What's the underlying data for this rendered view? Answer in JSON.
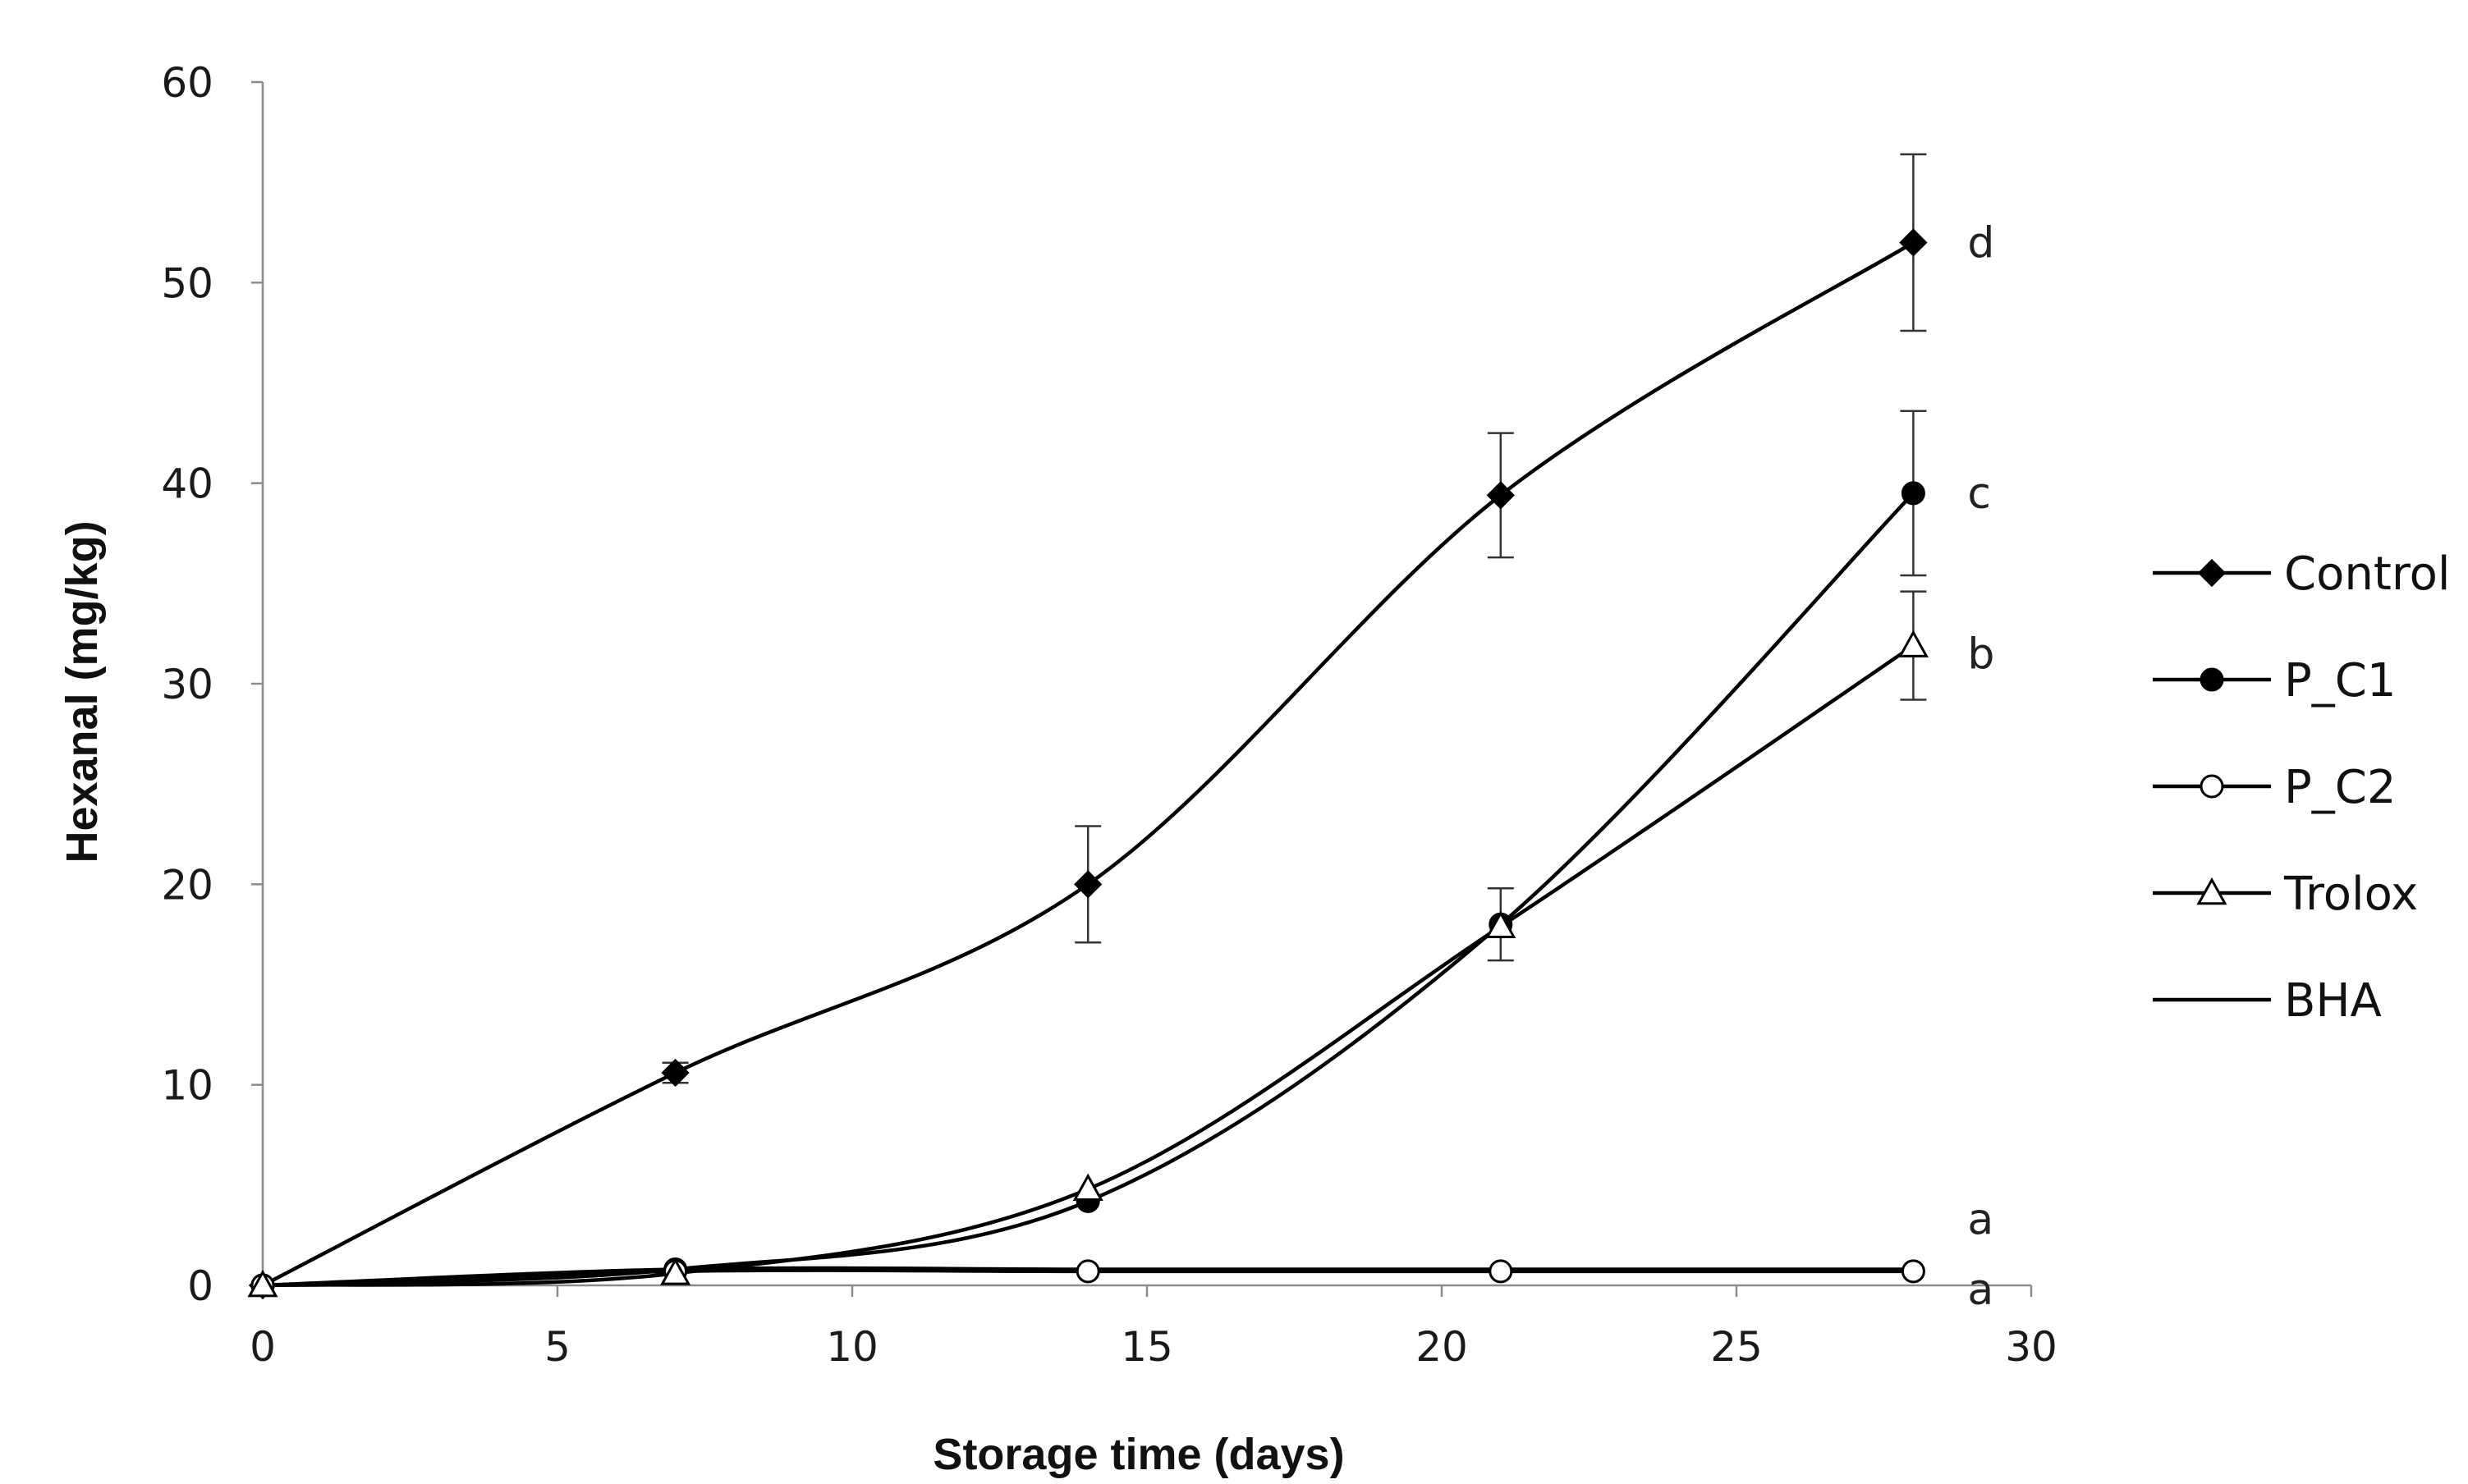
{
  "chart_data": {
    "type": "line",
    "title": "",
    "xlabel": "Storage time (days)",
    "ylabel": "Hexanal (mg/kg)",
    "xlim": [
      0,
      30
    ],
    "ylim": [
      0,
      60
    ],
    "xticks": [
      0,
      5,
      10,
      15,
      20,
      25,
      30
    ],
    "yticks": [
      0,
      10,
      20,
      30,
      40,
      50,
      60
    ],
    "grid": false,
    "legend_position": "right",
    "x": [
      0,
      7,
      14,
      21,
      28
    ],
    "series": [
      {
        "name": "Control",
        "marker": "filled-diamond",
        "y": [
          0,
          10.6,
          20.0,
          39.4,
          52.0
        ],
        "error": [
          0,
          0.5,
          2.9,
          3.1,
          4.4
        ]
      },
      {
        "name": "P_C1",
        "marker": "filled-circle",
        "y": [
          0,
          0.8,
          4.2,
          18.0,
          39.5
        ],
        "error": [
          0,
          0,
          0,
          1.8,
          4.1
        ]
      },
      {
        "name": "P_C2",
        "marker": "open-circle",
        "y": [
          0,
          0.7,
          0.7,
          0.7,
          0.7
        ],
        "error": [
          0,
          0,
          0,
          0,
          0
        ]
      },
      {
        "name": "Trolox",
        "marker": "open-triangle",
        "y": [
          0,
          0.6,
          4.8,
          17.9,
          31.9
        ],
        "error": [
          0,
          0,
          0,
          0,
          2.7
        ]
      },
      {
        "name": "BHA",
        "marker": "none",
        "y": [
          0,
          0.8,
          0.8,
          0.8,
          0.8
        ],
        "error": [
          0,
          0,
          0,
          0,
          0
        ]
      }
    ],
    "annotations": [
      {
        "text": "d",
        "x": 28,
        "y": 52.0
      },
      {
        "text": "c",
        "x": 28,
        "y": 39.5
      },
      {
        "text": "b",
        "x": 28,
        "y": 31.5
      },
      {
        "text": "a",
        "x": 28,
        "y": 3.3
      },
      {
        "text": "a",
        "x": 28,
        "y": -0.2
      }
    ]
  }
}
